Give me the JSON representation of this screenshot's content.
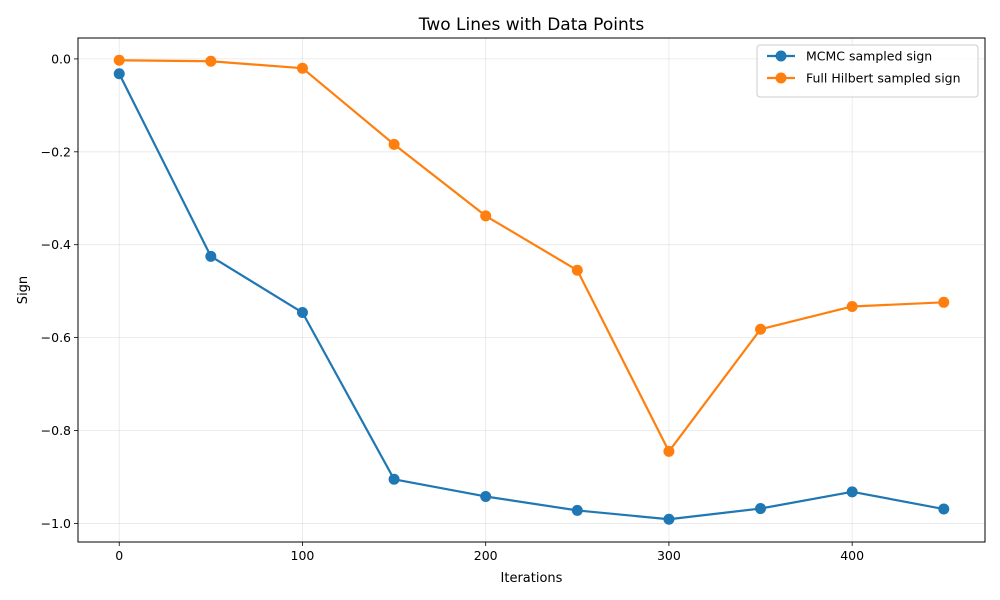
{
  "chart_data": {
    "type": "line",
    "title": "Two Lines with Data Points",
    "xlabel": "Iterations",
    "ylabel": "Sign",
    "x": [
      0,
      50,
      100,
      150,
      200,
      250,
      300,
      350,
      400,
      450
    ],
    "xlim": [
      -22.5,
      472.5
    ],
    "ylim": [
      -1.04,
      0.045
    ],
    "xticks": [
      0,
      100,
      200,
      300,
      400
    ],
    "xtick_labels": [
      "0",
      "100",
      "200",
      "300",
      "400"
    ],
    "yticks": [
      0.0,
      -0.2,
      -0.4,
      -0.6,
      -0.8,
      -1.0
    ],
    "ytick_labels": [
      "0.0",
      "−0.2",
      "−0.4",
      "−0.6",
      "−0.8",
      "−1.0"
    ],
    "grid": true,
    "legend_position": "top-right",
    "series": [
      {
        "name": "MCMC sampled sign",
        "color": "#1f77b4",
        "values": [
          -0.032,
          -0.425,
          -0.546,
          -0.905,
          -0.942,
          -0.972,
          -0.991,
          -0.968,
          -0.932,
          -0.969
        ]
      },
      {
        "name": "Full Hilbert sampled sign",
        "color": "#ff7f0e",
        "values": [
          -0.003,
          -0.005,
          -0.02,
          -0.184,
          -0.338,
          -0.455,
          -0.845,
          -0.582,
          -0.533,
          -0.524
        ]
      }
    ]
  }
}
